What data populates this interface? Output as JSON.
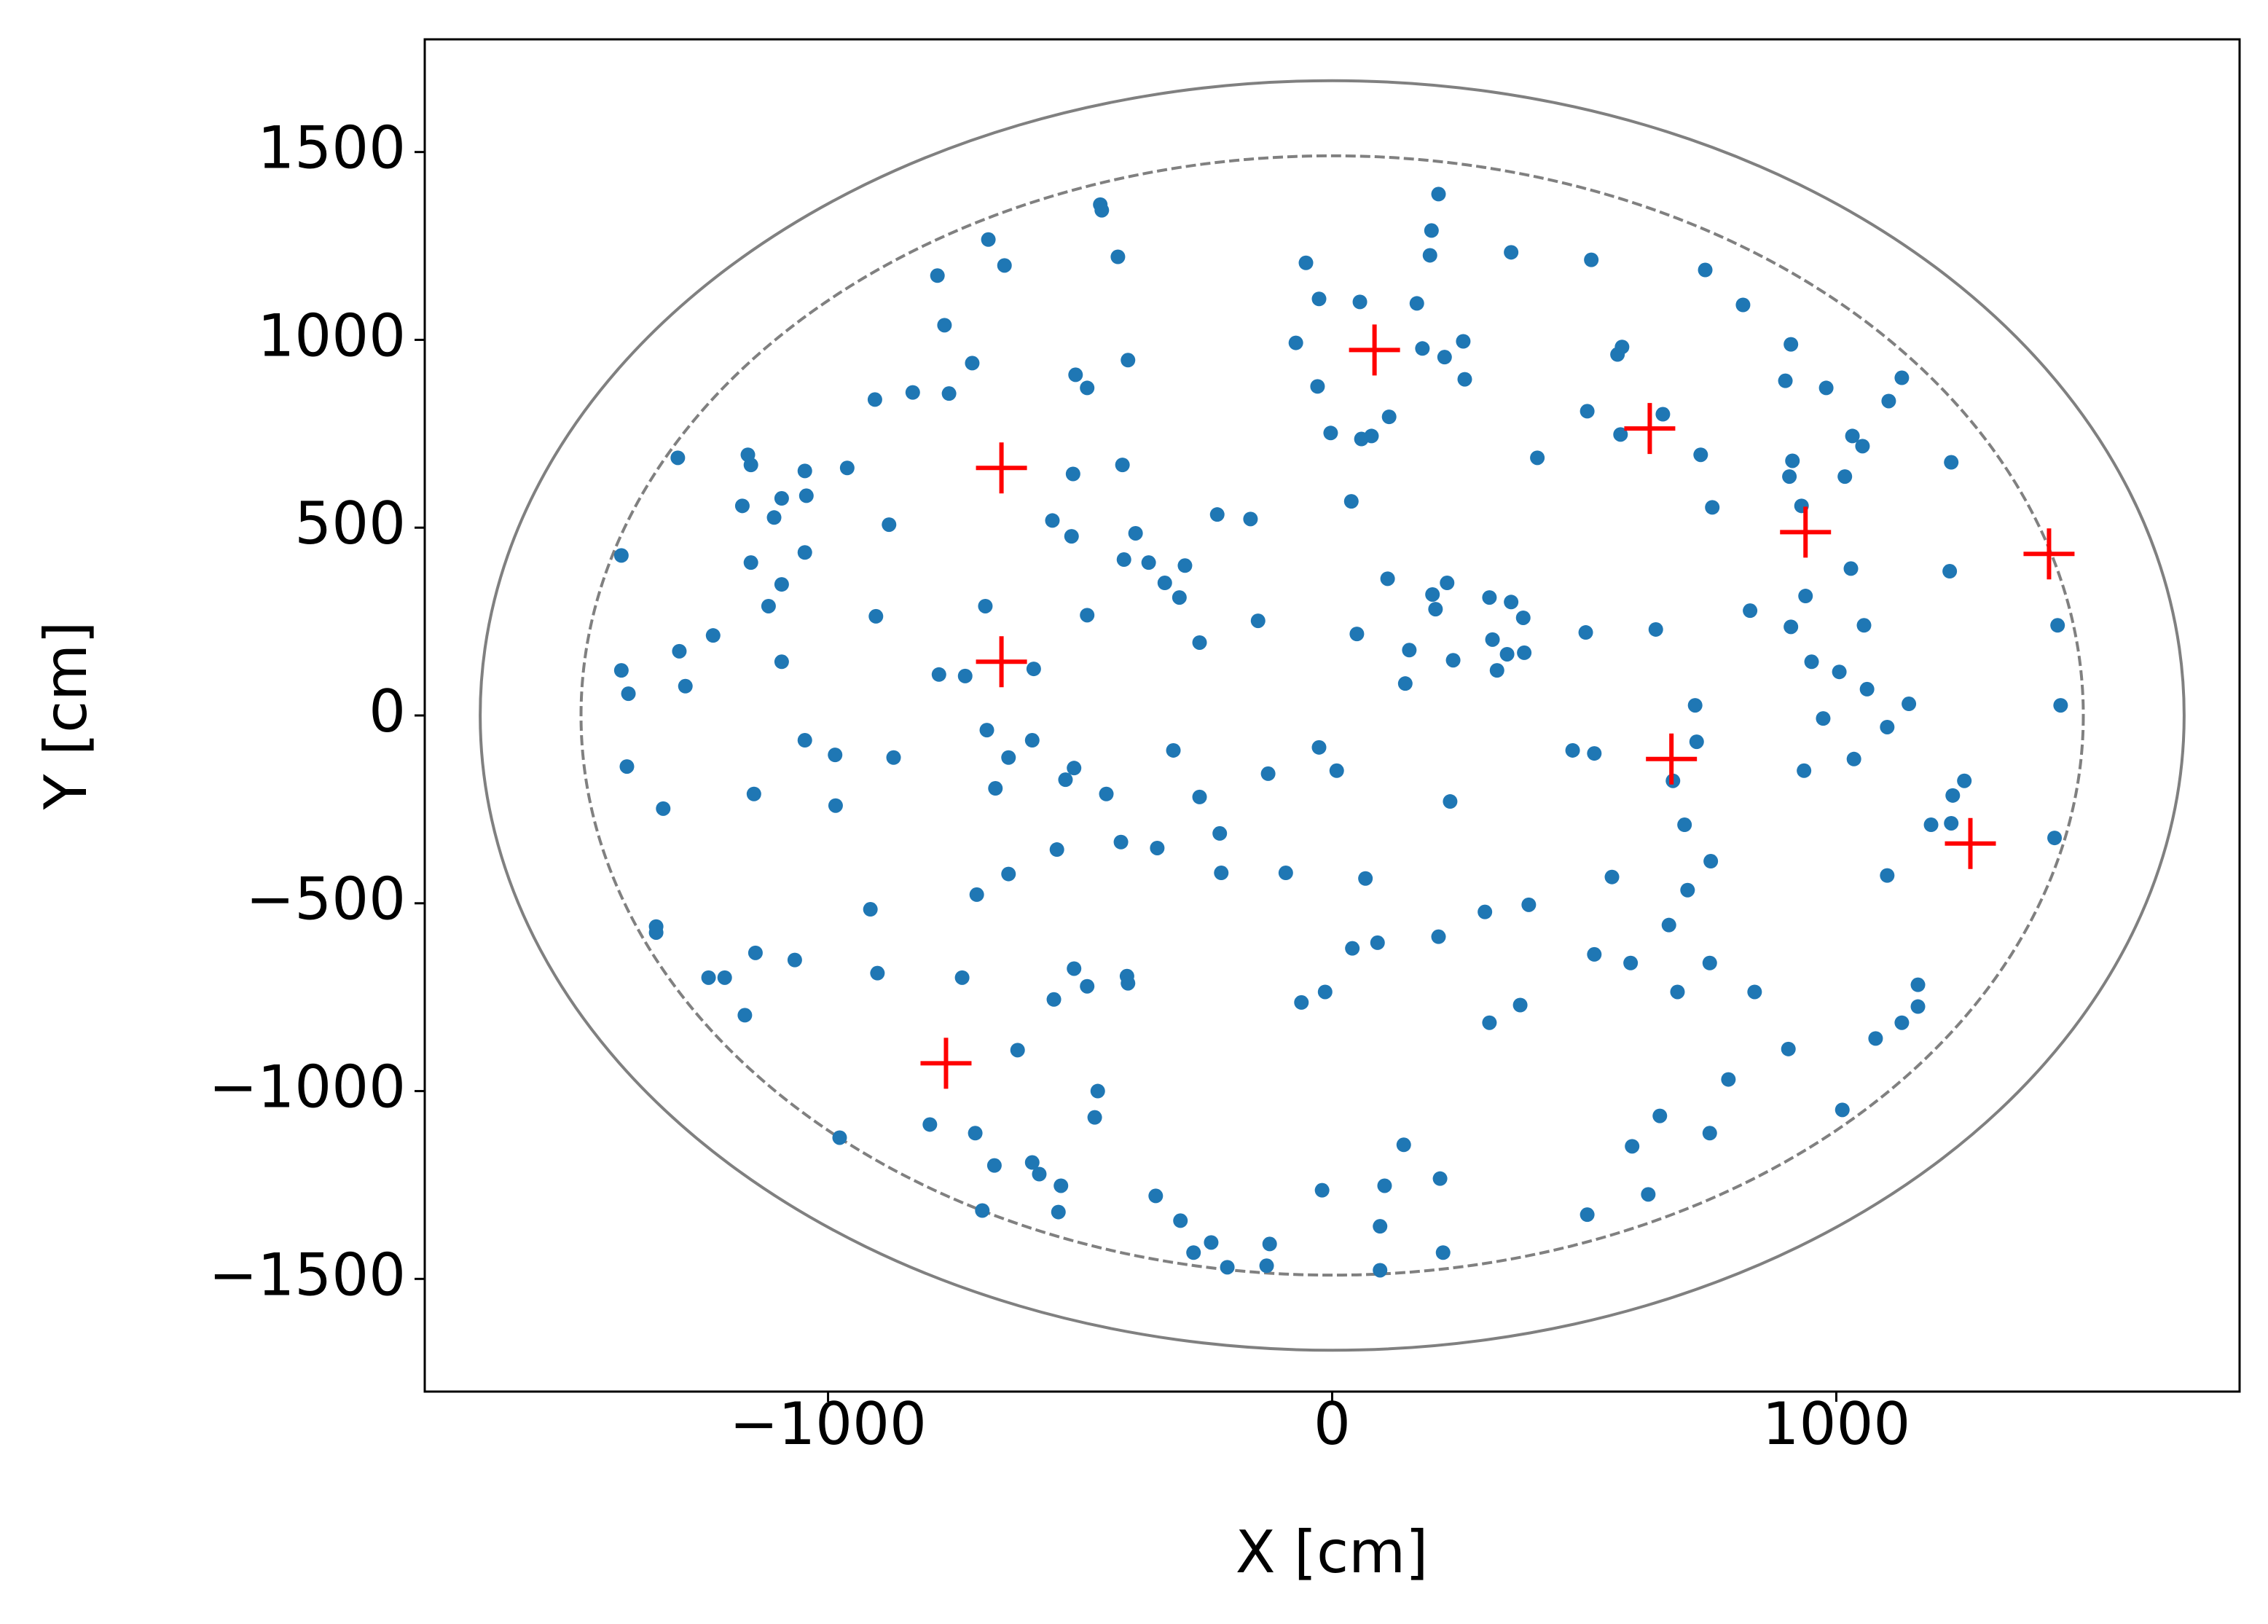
{
  "chart_data": {
    "type": "scatter",
    "xlabel": "X [cm]",
    "ylabel": "Y [cm]",
    "xlim": [
      -1800,
      1800
    ],
    "ylim": [
      -1800,
      1800
    ],
    "xticks": [
      {
        "value": -1000,
        "label": "−1000"
      },
      0,
      1000
    ],
    "yticks": [
      {
        "value": -1500,
        "label": "−1500"
      },
      {
        "value": -1000,
        "label": "−1000"
      },
      {
        "value": -500,
        "label": "−500"
      },
      0,
      500,
      1000,
      1500
    ],
    "circles": [
      {
        "radius": 1690,
        "color": "#808080",
        "linestyle": "solid"
      },
      {
        "radius": 1490,
        "color": "#808080",
        "linestyle": "dashed"
      }
    ],
    "series": [
      {
        "color": "#1f77b4",
        "marker": "o",
        "x": [
          -460,
          -457,
          -682,
          -425,
          -650,
          -783,
          211,
          197,
          194,
          355,
          514,
          -52,
          -26,
          55,
          168,
          740,
          815,
          910,
          899,
          980,
          -769,
          -714,
          -405,
          -72,
          179,
          223,
          260,
          263,
          566,
          575,
          506,
          656,
          -29,
          -907,
          -832,
          -760,
          -509,
          -486,
          1130,
          1104,
          1032,
          1052,
          913,
          907,
          1017,
          -3,
          58,
          78,
          113,
          572,
          407,
          731,
          1228,
          -1298,
          -1159,
          -1153,
          -1046,
          -962,
          -514,
          -416,
          931,
          754,
          38,
          1029,
          1225,
          -1170,
          -1092,
          -1107,
          -1043,
          -879,
          -555,
          -517,
          -390,
          -228,
          -162,
          -1410,
          -1153,
          -1046,
          -1118,
          -1092,
          -413,
          -364,
          -332,
          -292,
          -303,
          110,
          199,
          228,
          205,
          312,
          355,
          379,
          318,
          347,
          381,
          327,
          240,
          153,
          145,
          49,
          -688,
          -486,
          -905,
          -263,
          -147,
          503,
          642,
          829,
          910,
          939,
          974,
          1035,
          1055,
          1061,
          1006,
          1144,
          1439,
          1445,
          -1295,
          -1228,
          -1092,
          -1283,
          -780,
          -728,
          -592,
          477,
          520,
          720,
          723,
          676,
          699,
          751,
          705,
          668,
          685,
          749,
          555,
          520,
          592,
          650,
          595,
          627,
          506,
          786,
          749,
          838,
          905,
          1012,
          1078,
          1130,
          1162,
          1162,
          1101,
          1188,
          1231,
          1254,
          1228,
          1433,
          390,
          312,
          373,
          303,
          66,
          40,
          90,
          -14,
          -61,
          211,
          234,
          -26,
          9,
          -127,
          -92,
          -223,
          -263,
          -315,
          -220,
          -347,
          -419,
          -529,
          -448,
          -512,
          -595,
          -685,
          -642,
          -668,
          -642,
          -705,
          -546,
          -486,
          -407,
          -405,
          -512,
          -552,
          -624,
          -734,
          -870,
          -1327,
          -1399,
          -1147,
          -1046,
          -986,
          -985,
          -1066,
          -916,
          -902,
          -1341,
          -1341,
          -1237,
          -1205,
          -1165,
          -1144,
          -977,
          -798,
          -708,
          -670,
          -694,
          -595,
          -581,
          -538,
          -543,
          -465,
          -471,
          -350,
          -301,
          -275,
          -240,
          -208,
          -124,
          -130,
          -20,
          104,
          95,
          95,
          142,
          214,
          220,
          -1410,
          -1396,
          951,
          936,
          1101
        ],
        "values": [
          1360,
          1345,
          1267,
          1221,
          1198,
          1171,
          1388,
          1291,
          1225,
          1233,
          1213,
          1205,
          1109,
          1101,
          1097,
          1186,
          1093,
          988,
          891,
          872,
          1039,
          938,
          946,
          992,
          977,
          954,
          996,
          895,
          961,
          981,
          810,
          802,
          876,
          841,
          860,
          857,
          907,
          872,
          899,
          837,
          744,
          717,
          678,
          636,
          636,
          752,
          736,
          744,
          795,
          748,
          686,
          694,
          674,
          686,
          694,
          667,
          651,
          659,
          643,
          667,
          558,
          554,
          570,
          391,
          384,
          558,
          578,
          527,
          585,
          508,
          519,
          477,
          485,
          535,
          523,
          426,
          407,
          434,
          291,
          349,
          415,
          407,
          353,
          399,
          314,
          364,
          322,
          353,
          283,
          314,
          302,
          260,
          202,
          163,
          167,
          120,
          147,
          174,
          85,
          217,
          291,
          267,
          264,
          194,
          252,
          221,
          229,
          279,
          236,
          318,
          -8,
          -116,
          240,
          70,
          116,
          31,
          240,
          27,
          171,
          213,
          143,
          78,
          109,
          105,
          124,
          -93,
          -101,
          27,
          -70,
          -174,
          -291,
          -388,
          -465,
          -558,
          -736,
          -659,
          -430,
          -636,
          -659,
          -1066,
          -1147,
          -1275,
          -1329,
          -969,
          -1112,
          -736,
          -888,
          -1050,
          -860,
          -818,
          -717,
          -775,
          -426,
          -291,
          -213,
          -174,
          -287,
          -326,
          -504,
          -818,
          -771,
          -523,
          -434,
          -620,
          -605,
          -736,
          -764,
          -589,
          -229,
          -85,
          -147,
          -155,
          -419,
          -314,
          -217,
          -93,
          -419,
          -353,
          -337,
          -171,
          -209,
          -140,
          -66,
          -39,
          -112,
          -194,
          -422,
          -477,
          -357,
          -721,
          -694,
          -713,
          -674,
          -756,
          -891,
          -698,
          -112,
          -248,
          -136,
          -209,
          -66,
          -105,
          -240,
          -651,
          -516,
          -686,
          -562,
          -578,
          -698,
          -698,
          -798,
          -632,
          -1124,
          -1089,
          -1112,
          -1198,
          -1318,
          -1190,
          -1221,
          -1252,
          -1322,
          -1000,
          -1070,
          -1279,
          -1345,
          -1430,
          -1403,
          -1469,
          -1407,
          -1465,
          -1264,
          -1252,
          -1360,
          -1477,
          -1143,
          -1233,
          -1430,
          120,
          58,
          143,
          -147,
          -31
        ]
      },
      {
        "color": "#ff0000",
        "marker": "+",
        "x": [
          84,
          630,
          -656,
          939,
          1422,
          -656,
          673,
          1266,
          -766
        ],
        "values": [
          973,
          764,
          659,
          488,
          430,
          143,
          -116,
          -341,
          -926
        ]
      }
    ]
  }
}
